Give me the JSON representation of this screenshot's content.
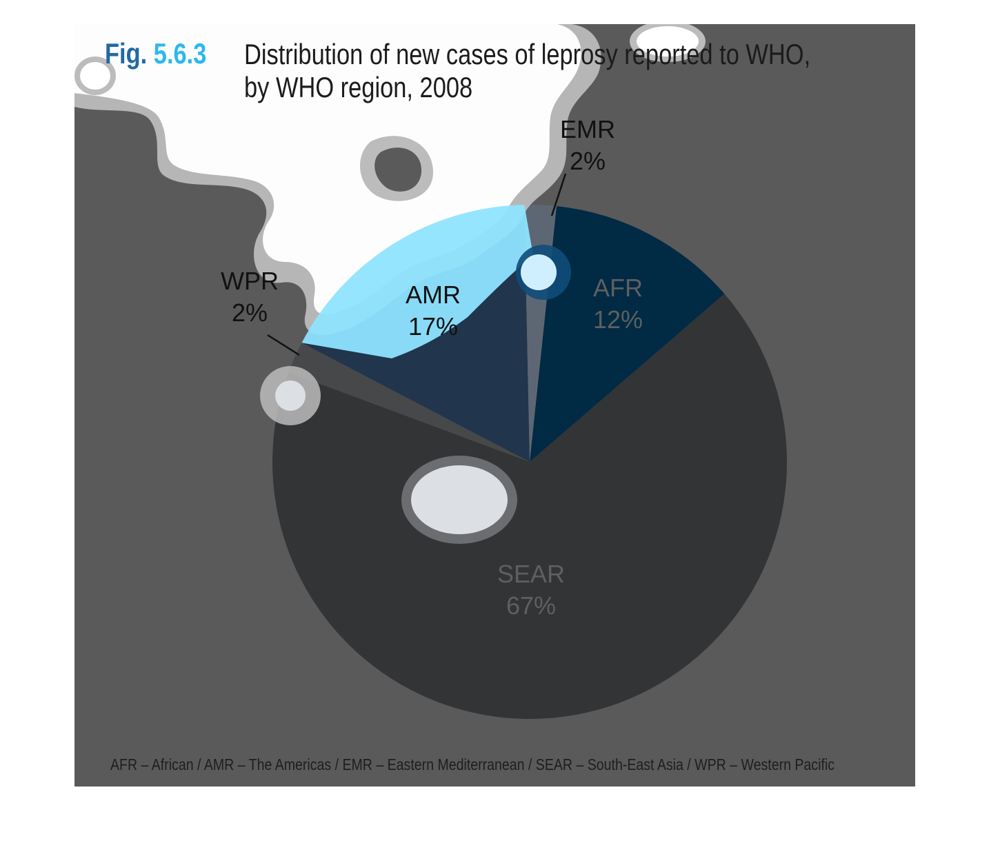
{
  "figure": {
    "label_prefix": "Fig.",
    "label_number": "5.6.3",
    "title_line1": "Distribution of new cases of leprosy reported to WHO,",
    "title_line2": "by WHO region, 2008"
  },
  "footnote": "AFR – African / AMR – The Americas / EMR – Eastern Mediterranean / SEAR – South-East Asia / WPR – Western Pacific",
  "colors": {
    "background_panel": "#5a5a5a",
    "blob_fill": "#ffffff",
    "blob_ring": "#bcbcbc"
  },
  "chart_data": {
    "type": "pie",
    "title": "Distribution of new cases of leprosy reported to WHO, by WHO region, 2008",
    "units": "percent",
    "slices": [
      {
        "label": "AFR",
        "value": 12,
        "value_label": "12%",
        "color": "#012a44"
      },
      {
        "label": "SEAR",
        "value": 67,
        "value_label": "67%",
        "color": "#333436"
      },
      {
        "label": "WPR",
        "value": 2,
        "value_label": "2%",
        "color": "#47484a"
      },
      {
        "label": "AMR",
        "value": 17,
        "value_label": "17%",
        "color": "#21354c"
      },
      {
        "label": "EMR",
        "value": 2,
        "value_label": "2%",
        "color": "#5d6773"
      }
    ]
  }
}
